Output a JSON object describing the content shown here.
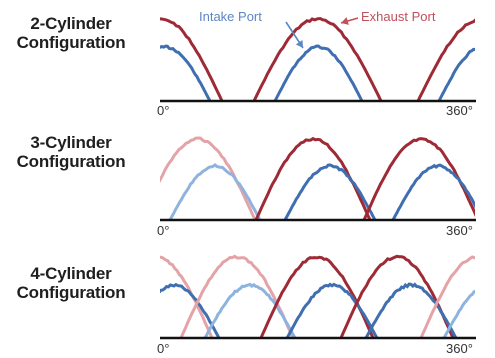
{
  "colors": {
    "intake": "#3f6fb0",
    "exhaust": "#9e2a35",
    "intake_light": "#8fb3df",
    "exhaust_light": "#e3a3a7",
    "axis": "#111111"
  },
  "legend": {
    "intake_label": "Intake Port",
    "exhaust_label": "Exhaust Port"
  },
  "axis": {
    "start_label": "0°",
    "end_label": "360°"
  },
  "panels": [
    {
      "label_line1": "2-Cylinder",
      "label_line2": "Configuration"
    },
    {
      "label_line1": "3-Cylinder",
      "label_line2": "Configuration"
    },
    {
      "label_line1": "4-Cylinder",
      "label_line2": "Configuration"
    }
  ]
}
